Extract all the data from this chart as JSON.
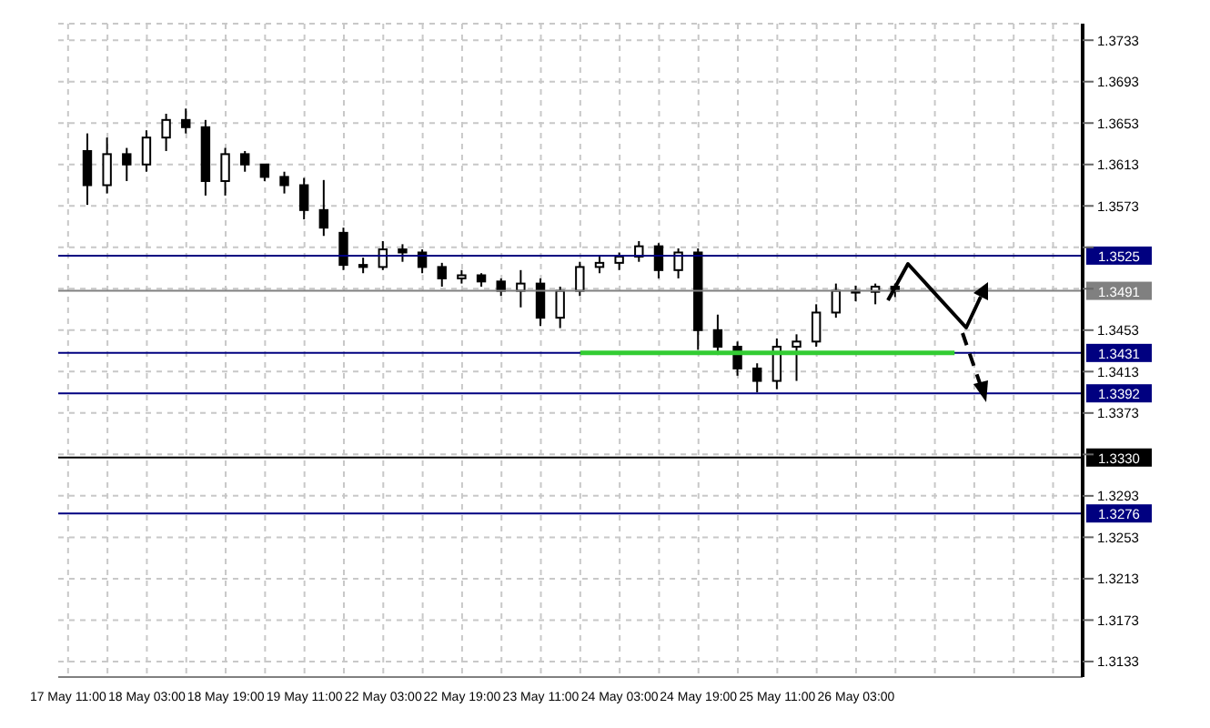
{
  "chart_data": {
    "type": "candlestick",
    "color": "#000000",
    "categories": [
      "17 May 11:00",
      null,
      null,
      null,
      "18 May 03:00",
      null,
      null,
      null,
      "18 May 19:00",
      null,
      null,
      null,
      "19 May 11:00",
      null,
      null,
      null,
      "22 May 03:00",
      null,
      null,
      null,
      "22 May 19:00",
      null,
      null,
      null,
      "23 May 11:00",
      null,
      null,
      null,
      "24 May 03:00",
      null,
      null,
      null,
      "24 May 19:00",
      null,
      null,
      null,
      "25 May 11:00",
      null,
      null,
      null,
      "26 May 03:00",
      null,
      null,
      null,
      null,
      null,
      null,
      null,
      null,
      null,
      null,
      null
    ],
    "ohlc": [
      null,
      [
        1.3626,
        1.3643,
        1.3574,
        1.3593
      ],
      [
        1.3593,
        1.3639,
        1.3585,
        1.3623
      ],
      [
        1.3623,
        1.3629,
        1.3597,
        1.3613
      ],
      [
        1.3613,
        1.3646,
        1.3606,
        1.3639
      ],
      [
        1.3639,
        1.3662,
        1.3626,
        1.3656
      ],
      [
        1.3656,
        1.3667,
        1.3643,
        1.3649
      ],
      [
        1.3649,
        1.3656,
        1.3583,
        1.3597
      ],
      [
        1.3597,
        1.3629,
        1.3583,
        1.3623
      ],
      [
        1.3623,
        1.3626,
        1.3606,
        1.3613
      ],
      [
        1.3613,
        1.3613,
        1.3597,
        1.3601
      ],
      [
        1.3601,
        1.3606,
        1.3585,
        1.3593
      ],
      [
        1.3593,
        1.36,
        1.356,
        1.3569
      ],
      [
        1.3569,
        1.3598,
        1.3544,
        1.3552
      ],
      [
        1.3547,
        1.3552,
        1.3511,
        1.3516
      ],
      [
        1.3516,
        1.3523,
        1.3508,
        1.3514
      ],
      [
        1.3514,
        1.3539,
        1.3511,
        1.3531
      ],
      [
        1.3531,
        1.3536,
        1.3519,
        1.3528
      ],
      [
        1.3528,
        1.3531,
        1.3508,
        1.3514
      ],
      [
        1.3514,
        1.3518,
        1.3495,
        1.3503
      ],
      [
        1.3503,
        1.3511,
        1.3498,
        1.3506
      ],
      [
        1.3506,
        1.3508,
        1.3495,
        1.35
      ],
      [
        1.35,
        1.3503,
        1.3486,
        1.3491
      ],
      [
        1.3491,
        1.3511,
        1.3475,
        1.3498
      ],
      [
        1.3498,
        1.3503,
        1.3457,
        1.3465
      ],
      [
        1.3465,
        1.3495,
        1.3455,
        1.3491
      ],
      [
        1.3491,
        1.3519,
        1.3486,
        1.3514
      ],
      [
        1.3514,
        1.3524,
        1.3508,
        1.3518
      ],
      [
        1.3518,
        1.3528,
        1.3511,
        1.3524
      ],
      [
        1.3524,
        1.3539,
        1.3519,
        1.3534
      ],
      [
        1.3534,
        1.3537,
        1.3503,
        1.3511
      ],
      [
        1.3511,
        1.3532,
        1.3503,
        1.3528
      ],
      [
        1.3528,
        1.3532,
        1.3434,
        1.3453
      ],
      [
        1.3453,
        1.3468,
        1.3429,
        1.3437
      ],
      [
        1.3437,
        1.3442,
        1.3409,
        1.3416
      ],
      [
        1.3416,
        1.3421,
        1.3393,
        1.3404
      ],
      [
        1.3404,
        1.3445,
        1.3396,
        1.3437
      ],
      [
        1.3437,
        1.3449,
        1.3404,
        1.3442
      ],
      [
        1.3442,
        1.3478,
        1.3437,
        1.347
      ],
      [
        1.347,
        1.3498,
        1.3465,
        1.3491
      ],
      [
        1.3491,
        1.3496,
        1.3481,
        1.349
      ],
      [
        1.349,
        1.3498,
        1.3478,
        1.3495
      ],
      [
        1.3495,
        1.3498,
        1.3485,
        1.3491
      ],
      null,
      null,
      null,
      null,
      null,
      null,
      null,
      null,
      null
    ],
    "series": [
      {
        "type": "line",
        "color": "#33cc33",
        "values": [
          null,
          null,
          null,
          null,
          null,
          null,
          null,
          null,
          null,
          null,
          null,
          null,
          null,
          null,
          null,
          null,
          null,
          null,
          null,
          null,
          null,
          null,
          null,
          null,
          null,
          null,
          1.3431,
          1.3431,
          1.3431,
          1.3431,
          1.3431,
          1.3431,
          1.3431,
          1.3431,
          1.3431,
          1.3431,
          1.3431,
          1.3431,
          1.3431,
          1.3431,
          1.3431,
          1.3431,
          1.3431,
          1.3431,
          1.3431,
          1.3431,
          null,
          null,
          null,
          null,
          null,
          null
        ]
      }
    ],
    "ylim": [
      1.3118,
      1.3749
    ],
    "yticks": [
      1.3733,
      1.3693,
      1.3653,
      1.3613,
      1.3573,
      {
        "value": 1.3533,
        "label": null
      },
      {
        "value": 1.3493,
        "label": null
      },
      1.3453,
      1.3413,
      1.3373,
      {
        "value": 1.3333,
        "label": null
      },
      1.3293,
      1.3253,
      1.3213,
      1.3173,
      1.3133
    ],
    "ref_lines": [
      {
        "axis": "y",
        "value": 1.3525,
        "label": "1.3525",
        "color": "#000080"
      },
      {
        "axis": "y",
        "value": 1.3491,
        "label": "1.3491",
        "color": "#808080"
      },
      {
        "axis": "y",
        "value": 1.3431,
        "label": "1.3431",
        "color": "#000080"
      },
      {
        "axis": "y",
        "value": 1.3392,
        "label": "1.3392",
        "color": "#000080"
      },
      {
        "axis": "y",
        "value": 1.333,
        "label": "1.3330",
        "color": "#000000"
      },
      {
        "axis": "y",
        "value": 1.3276,
        "label": "1.3276",
        "color": "#000080"
      }
    ],
    "grid": true
  }
}
